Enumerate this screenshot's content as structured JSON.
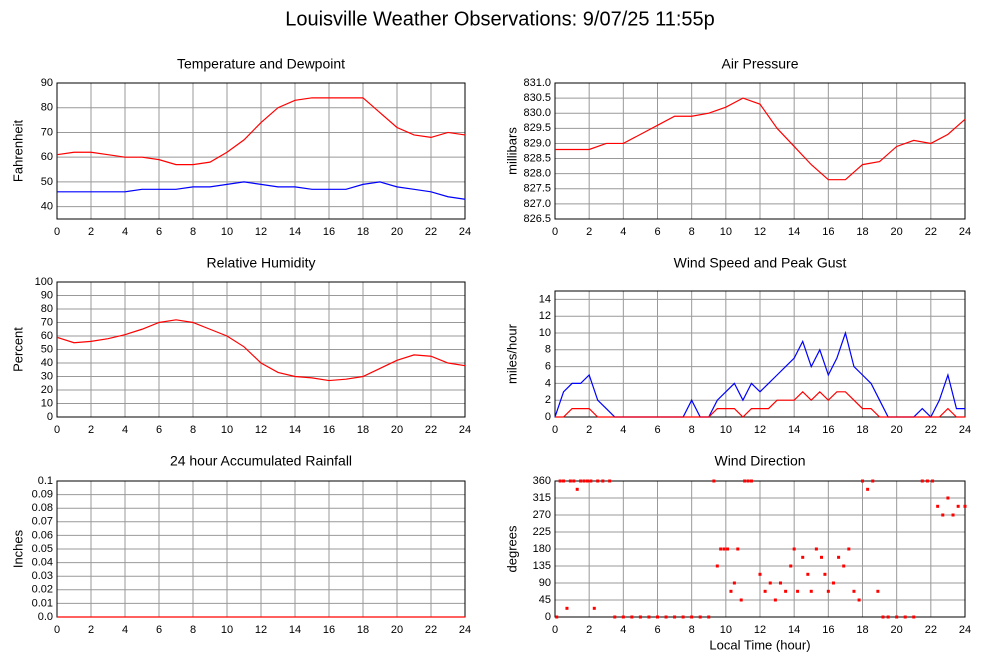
{
  "title": "Louisville Weather Observations: 9/07/25 11:55p",
  "chart_data": [
    {
      "type": "line",
      "title": "Temperature and Dewpoint",
      "y_label": "Fahrenheit",
      "x": [
        0,
        1,
        2,
        3,
        4,
        5,
        6,
        7,
        8,
        9,
        10,
        11,
        12,
        13,
        14,
        15,
        16,
        17,
        18,
        19,
        20,
        21,
        22,
        23,
        24
      ],
      "series": [
        {
          "color": "#ff0000",
          "values": [
            61,
            62,
            62,
            61,
            60,
            60,
            59,
            57,
            57,
            58,
            62,
            67,
            74,
            80,
            83,
            84,
            84,
            84,
            84,
            78,
            72,
            69,
            68,
            70,
            69
          ]
        },
        {
          "color": "#0000ff",
          "values": [
            46,
            46,
            46,
            46,
            46,
            47,
            47,
            47,
            48,
            48,
            49,
            50,
            49,
            48,
            48,
            47,
            47,
            47,
            49,
            50,
            48,
            47,
            46,
            44,
            43
          ]
        }
      ],
      "xlim": [
        0,
        24
      ],
      "xticks": [
        0,
        2,
        4,
        6,
        8,
        10,
        12,
        14,
        16,
        18,
        20,
        22,
        24
      ],
      "ylim": [
        35,
        90
      ],
      "yticks": [
        40,
        50,
        60,
        70,
        80,
        90
      ],
      "grid": true
    },
    {
      "type": "line",
      "title": "Air Pressure",
      "y_label": "millibars",
      "x": [
        0,
        1,
        2,
        3,
        4,
        5,
        6,
        7,
        8,
        9,
        10,
        11,
        12,
        13,
        14,
        15,
        16,
        17,
        18,
        19,
        20,
        21,
        22,
        23,
        24
      ],
      "series": [
        {
          "color": "#ff0000",
          "values": [
            828.8,
            828.8,
            828.8,
            829.0,
            829.0,
            829.3,
            829.6,
            829.9,
            829.9,
            830.0,
            830.2,
            830.5,
            830.3,
            829.5,
            828.9,
            828.3,
            827.8,
            827.8,
            828.3,
            828.4,
            828.9,
            829.1,
            829.0,
            829.3,
            829.8
          ]
        }
      ],
      "xlim": [
        0,
        24
      ],
      "xticks": [
        0,
        2,
        4,
        6,
        8,
        10,
        12,
        14,
        16,
        18,
        20,
        22,
        24
      ],
      "ylim": [
        826.5,
        831.0
      ],
      "yticks": [
        826.5,
        {
          "value": 827,
          "label": "827.0"
        },
        827.5,
        {
          "value": 828,
          "label": "828.0"
        },
        828.5,
        {
          "value": 829,
          "label": "829.0"
        },
        829.5,
        {
          "value": 830,
          "label": "830.0"
        },
        830.5,
        {
          "value": 831,
          "label": "831.0"
        }
      ],
      "grid": true
    },
    {
      "type": "line",
      "title": "Relative Humidity",
      "y_label": "Percent",
      "x": [
        0,
        1,
        2,
        3,
        4,
        5,
        6,
        7,
        8,
        9,
        10,
        11,
        12,
        13,
        14,
        15,
        16,
        17,
        18,
        19,
        20,
        21,
        22,
        23,
        24
      ],
      "series": [
        {
          "color": "#ff0000",
          "values": [
            59,
            55,
            56,
            58,
            61,
            65,
            70,
            72,
            70,
            65,
            60,
            52,
            40,
            33,
            30,
            29,
            27,
            28,
            30,
            36,
            42,
            46,
            45,
            40,
            38
          ]
        }
      ],
      "xlim": [
        0,
        24
      ],
      "xticks": [
        0,
        2,
        4,
        6,
        8,
        10,
        12,
        14,
        16,
        18,
        20,
        22,
        24
      ],
      "ylim": [
        0,
        100
      ],
      "yticks": [
        0,
        10,
        20,
        30,
        40,
        50,
        60,
        70,
        80,
        90,
        100
      ],
      "grid": true
    },
    {
      "type": "line",
      "title": "Wind Speed and Peak Gust",
      "y_label": "miles/hour",
      "x": [
        0,
        0.5,
        1,
        1.5,
        2,
        2.5,
        3,
        3.5,
        4,
        4.5,
        5,
        5.5,
        6,
        6.5,
        7,
        7.5,
        8,
        8.5,
        9,
        9.5,
        10,
        10.5,
        11,
        11.5,
        12,
        12.5,
        13,
        13.5,
        14,
        14.5,
        15,
        15.5,
        16,
        16.5,
        17,
        17.5,
        18,
        18.5,
        19,
        19.5,
        20,
        20.5,
        21,
        21.5,
        22,
        22.5,
        23,
        23.5,
        24
      ],
      "series": [
        {
          "color": "#0000ff",
          "values": [
            0,
            3,
            4,
            4,
            5,
            2,
            1,
            0,
            0,
            0,
            0,
            0,
            0,
            0,
            0,
            0,
            2,
            0,
            0,
            2,
            3,
            4,
            2,
            4,
            3,
            4,
            5,
            6,
            7,
            9,
            6,
            8,
            5,
            7,
            10,
            6,
            5,
            4,
            2,
            0,
            0,
            0,
            0,
            1,
            0,
            2,
            5,
            1,
            1
          ]
        },
        {
          "color": "#ff0000",
          "values": [
            0,
            0,
            1,
            1,
            1,
            0,
            0,
            0,
            0,
            0,
            0,
            0,
            0,
            0,
            0,
            0,
            0,
            0,
            0,
            1,
            1,
            1,
            0,
            1,
            1,
            1,
            2,
            2,
            2,
            3,
            2,
            3,
            2,
            3,
            3,
            2,
            1,
            1,
            0,
            0,
            0,
            0,
            0,
            0,
            0,
            0,
            1,
            0,
            0
          ]
        }
      ],
      "xlim": [
        0,
        24
      ],
      "xticks": [
        0,
        2,
        4,
        6,
        8,
        10,
        12,
        14,
        16,
        18,
        20,
        22,
        24
      ],
      "ylim": [
        0,
        15
      ],
      "yticks": [
        0,
        2,
        4,
        6,
        8,
        10,
        12,
        14
      ],
      "grid": true
    },
    {
      "type": "line",
      "title": "24 hour Accumulated Rainfall",
      "y_label": "Inches",
      "x": [
        0,
        1,
        2,
        3,
        4,
        5,
        6,
        7,
        8,
        9,
        10,
        11,
        12,
        13,
        14,
        15,
        16,
        17,
        18,
        19,
        20,
        21,
        22,
        23,
        24
      ],
      "series": [
        {
          "color": "#ff0000",
          "values": [
            0,
            0,
            0,
            0,
            0,
            0,
            0,
            0,
            0,
            0,
            0,
            0,
            0,
            0,
            0,
            0,
            0,
            0,
            0,
            0,
            0,
            0,
            0,
            0,
            0
          ]
        }
      ],
      "xlim": [
        0,
        24
      ],
      "xticks": [
        0,
        2,
        4,
        6,
        8,
        10,
        12,
        14,
        16,
        18,
        20,
        22,
        24
      ],
      "ylim": [
        0,
        0.1
      ],
      "yticks": [
        {
          "value": 0,
          "label": "0.0"
        },
        0.01,
        0.02,
        0.03,
        0.04,
        0.05,
        0.06,
        0.07,
        0.08,
        0.09,
        0.1
      ],
      "grid": true
    },
    {
      "type": "scatter",
      "title": "Wind Direction",
      "y_label": "degrees",
      "x_label": "Local Time (hour)",
      "x": [
        0.1,
        0.3,
        0.5,
        0.7,
        0.9,
        1.1,
        1.3,
        1.5,
        1.7,
        1.9,
        2.1,
        2.3,
        2.5,
        2.8,
        3.2,
        3.5,
        4,
        4.5,
        5,
        5.5,
        6,
        6.5,
        7,
        7.5,
        8,
        8.5,
        9,
        9.3,
        9.5,
        9.7,
        9.9,
        10.1,
        10.3,
        10.5,
        10.7,
        10.9,
        11.1,
        11.3,
        11.5,
        12,
        12.3,
        12.6,
        12.9,
        13.2,
        13.5,
        13.8,
        14,
        14.2,
        14.5,
        14.8,
        15,
        15.3,
        15.6,
        15.8,
        16,
        16.3,
        16.6,
        16.9,
        17.2,
        17.5,
        17.8,
        18,
        18.3,
        18.6,
        18.9,
        19.2,
        19.5,
        20,
        20.5,
        21,
        21.5,
        21.8,
        22.1,
        22.4,
        22.7,
        23,
        23.3,
        23.6,
        24
      ],
      "series": [
        {
          "color": "#ff0000",
          "values": [
            0,
            360,
            360,
            23,
            360,
            360,
            338,
            360,
            360,
            360,
            360,
            23,
            360,
            360,
            360,
            0,
            0,
            0,
            0,
            0,
            0,
            0,
            0,
            0,
            0,
            0,
            0,
            360,
            135,
            180,
            180,
            180,
            68,
            90,
            180,
            45,
            360,
            360,
            360,
            113,
            68,
            90,
            45,
            90,
            68,
            135,
            180,
            68,
            158,
            113,
            68,
            180,
            158,
            113,
            68,
            90,
            158,
            135,
            180,
            68,
            45,
            360,
            338,
            360,
            68,
            0,
            0,
            0,
            0,
            0,
            360,
            360,
            360,
            293,
            270,
            315,
            270,
            293,
            293
          ]
        }
      ],
      "xlim": [
        0,
        24
      ],
      "xticks": [
        0,
        2,
        4,
        6,
        8,
        10,
        12,
        14,
        16,
        18,
        20,
        22,
        24
      ],
      "ylim": [
        0,
        360
      ],
      "yticks": [
        0,
        45,
        90,
        135,
        180,
        225,
        270,
        315,
        360
      ],
      "grid": true
    }
  ]
}
